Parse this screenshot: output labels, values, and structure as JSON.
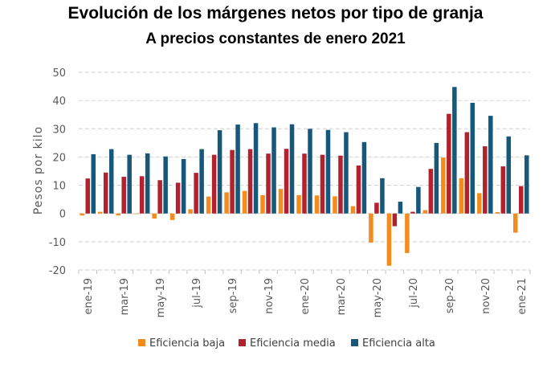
{
  "chart_data": {
    "type": "bar",
    "title": "Evolución de los márgenes netos por tipo de granja",
    "subtitle": "A precios constantes de enero 2021",
    "xlabel": "",
    "ylabel": "Pesos por kilo",
    "ylim": [
      -20,
      50
    ],
    "yticks": [
      -20,
      -10,
      0,
      10,
      20,
      30,
      40,
      50
    ],
    "grid": true,
    "legend_position": "bottom",
    "categories": [
      "ene-19",
      "feb-19",
      "mar-19",
      "abr-19",
      "may-19",
      "jun-19",
      "jul-19",
      "ago-19",
      "sep-19",
      "oct-19",
      "nov-19",
      "dic-19",
      "ene-20",
      "feb-20",
      "mar-20",
      "abr-20",
      "may-20",
      "jun-20",
      "jul-20",
      "ago-20",
      "sep-20",
      "oct-20",
      "nov-20",
      "dic-20",
      "ene-21"
    ],
    "tick_labels": [
      "ene-19",
      "",
      "mar-19",
      "",
      "may-19",
      "",
      "jul-19",
      "",
      "sep-19",
      "",
      "nov-19",
      "",
      "ene-20",
      "",
      "mar-20",
      "",
      "may-20",
      "",
      "jul-20",
      "",
      "sep-20",
      "",
      "nov-20",
      "",
      "ene-21"
    ],
    "series": [
      {
        "name": "Eficiencia baja",
        "color": "#F28C1E",
        "values": [
          -0.7,
          0.6,
          -0.7,
          -0.2,
          -1.8,
          -2.3,
          1.5,
          6.0,
          7.5,
          8.0,
          6.5,
          8.7,
          6.5,
          6.4,
          6.1,
          2.6,
          -10.3,
          -18.5,
          -14.0,
          1.2,
          19.8,
          12.5,
          7.2,
          0.5,
          -6.8
        ]
      },
      {
        "name": "Eficiencia media",
        "color": "#B0222E",
        "values": [
          12.4,
          14.5,
          13.0,
          13.2,
          11.8,
          10.9,
          14.4,
          20.8,
          22.5,
          22.8,
          21.2,
          22.9,
          21.2,
          20.8,
          20.5,
          17.0,
          3.8,
          -4.5,
          0.6,
          15.8,
          35.3,
          28.8,
          23.8,
          16.7,
          9.7
        ]
      },
      {
        "name": "Eficiencia alta",
        "color": "#17587A",
        "values": [
          21.0,
          22.8,
          20.8,
          21.3,
          20.2,
          19.3,
          22.8,
          29.5,
          31.5,
          32.0,
          30.5,
          31.6,
          30.0,
          29.6,
          28.8,
          25.3,
          12.5,
          4.2,
          9.4,
          25.0,
          44.8,
          39.2,
          34.6,
          27.3,
          20.6
        ]
      }
    ]
  }
}
